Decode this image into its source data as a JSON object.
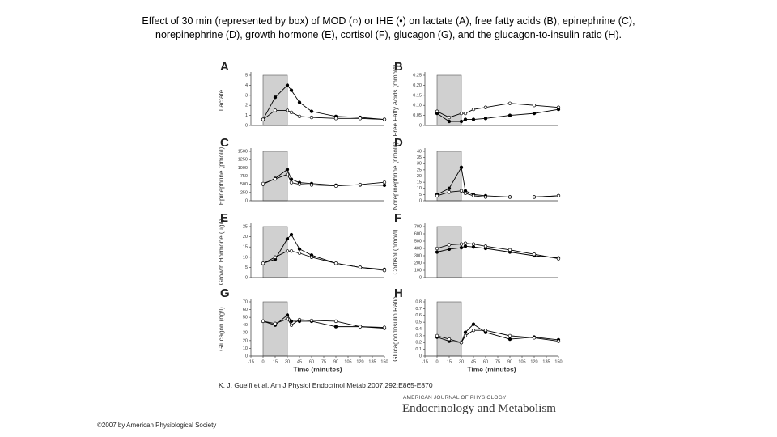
{
  "title": "Effect of 30 min (represented by box) of MOD (○) or IHE (•) on lactate (A), free fatty acids (B), epinephrine (C), norepinephrine (D), growth hormone (E), cortisol (F), glucagon (G), and the glucagon-to-insulin ratio (H).",
  "citation": "K. J. Guelfi et al. Am J Physiol Endocrinol Metab 2007;292:E865-E870",
  "copyright": "©2007 by American Physiological Society",
  "journal": {
    "name": "AMERICAN JOURNAL OF PHYSIOLOGY",
    "subtitle": "Endocrinology and Metabolism"
  },
  "chart_data": [
    {
      "type": "line",
      "panel": "A",
      "ylabel": "Lactate",
      "x": [
        0,
        15,
        30,
        35,
        45,
        60,
        90,
        120,
        150
      ],
      "xlim": [
        -15,
        150
      ],
      "ylim": [
        0,
        5
      ],
      "yticks": [
        0,
        1,
        2,
        3,
        4,
        5
      ],
      "shaded_range": [
        0,
        30
      ],
      "series": [
        {
          "marker": "filled",
          "color": "#000000",
          "values": [
            0.6,
            2.8,
            4.0,
            3.5,
            2.3,
            1.4,
            0.9,
            0.8,
            0.6
          ]
        },
        {
          "marker": "open",
          "color": "#000000",
          "values": [
            0.6,
            1.5,
            1.5,
            1.3,
            0.9,
            0.8,
            0.7,
            0.7,
            0.6
          ]
        }
      ]
    },
    {
      "type": "line",
      "panel": "B",
      "ylabel": "Free Fatty Acids (mmol/l)",
      "x": [
        0,
        15,
        30,
        35,
        45,
        60,
        90,
        120,
        150
      ],
      "xlim": [
        -15,
        150
      ],
      "ylim": [
        0,
        0.25
      ],
      "yticks": [
        0,
        0.05,
        {
          "value": 0.1,
          "label": "0.10"
        },
        0.15,
        {
          "value": 0.2,
          "label": "0.20"
        },
        0.25
      ],
      "shaded_range": [
        0,
        30
      ],
      "series": [
        {
          "marker": "filled",
          "color": "#000000",
          "values": [
            0.06,
            0.02,
            0.02,
            0.03,
            0.03,
            0.035,
            0.05,
            0.06,
            0.08
          ]
        },
        {
          "marker": "open",
          "color": "#000000",
          "values": [
            0.07,
            0.04,
            0.06,
            0.06,
            0.08,
            0.09,
            0.11,
            0.1,
            0.09
          ]
        }
      ]
    },
    {
      "type": "line",
      "panel": "C",
      "ylabel": "Epinephrine (pmol/l)",
      "x": [
        0,
        15,
        30,
        35,
        45,
        60,
        90,
        120,
        150
      ],
      "xlim": [
        -15,
        150
      ],
      "ylim": [
        0,
        1500
      ],
      "yticks": [
        0,
        250,
        500,
        750,
        1000,
        1250,
        1500
      ],
      "shaded_range": [
        0,
        30
      ],
      "series": [
        {
          "marker": "filled",
          "color": "#000000",
          "values": [
            500,
            680,
            950,
            650,
            550,
            520,
            470,
            480,
            470
          ]
        },
        {
          "marker": "open",
          "color": "#000000",
          "values": [
            520,
            660,
            800,
            550,
            500,
            480,
            450,
            490,
            560
          ]
        }
      ]
    },
    {
      "type": "line",
      "panel": "D",
      "ylabel": "Norepinephrine (nmol/l)",
      "x": [
        0,
        15,
        30,
        35,
        45,
        60,
        90,
        120,
        150
      ],
      "xlim": [
        -15,
        150
      ],
      "ylim": [
        0,
        40
      ],
      "yticks": [
        0,
        5,
        10,
        15,
        20,
        25,
        30,
        35,
        40
      ],
      "shaded_range": [
        0,
        30
      ],
      "series": [
        {
          "marker": "filled",
          "color": "#000000",
          "values": [
            5,
            10,
            27,
            8,
            5,
            4,
            3,
            3,
            4
          ]
        },
        {
          "marker": "open",
          "color": "#000000",
          "values": [
            4,
            7,
            8,
            6,
            4,
            3,
            3,
            3,
            4
          ]
        }
      ]
    },
    {
      "type": "line",
      "panel": "E",
      "ylabel": "Growth Hormone (µg/l)",
      "x": [
        0,
        15,
        30,
        35,
        45,
        60,
        90,
        120,
        150
      ],
      "xlim": [
        -15,
        150
      ],
      "ylim": [
        0,
        25
      ],
      "yticks": [
        0,
        5,
        10,
        15,
        20,
        25
      ],
      "shaded_range": [
        0,
        30
      ],
      "series": [
        {
          "marker": "filled",
          "color": "#000000",
          "values": [
            7,
            9,
            19,
            21,
            14,
            11,
            7,
            5,
            4
          ]
        },
        {
          "marker": "open",
          "color": "#000000",
          "values": [
            7,
            10,
            13,
            13,
            12,
            10,
            7,
            5,
            3.5
          ]
        }
      ]
    },
    {
      "type": "line",
      "panel": "F",
      "ylabel": "Cortisol (nmol/l)",
      "x": [
        0,
        15,
        30,
        35,
        45,
        60,
        90,
        120,
        150
      ],
      "xlim": [
        -15,
        150
      ],
      "ylim": [
        0,
        700
      ],
      "yticks": [
        0,
        100,
        200,
        300,
        400,
        500,
        600,
        700
      ],
      "shaded_range": [
        0,
        30
      ],
      "series": [
        {
          "marker": "filled",
          "color": "#000000",
          "values": [
            350,
            390,
            410,
            430,
            420,
            400,
            350,
            300,
            270
          ]
        },
        {
          "marker": "open",
          "color": "#000000",
          "values": [
            400,
            450,
            460,
            470,
            460,
            430,
            380,
            320,
            260
          ]
        }
      ]
    },
    {
      "type": "line",
      "panel": "G",
      "ylabel": "Glucagon (ng/l)",
      "xlabel": "Time (minutes)",
      "x": [
        0,
        15,
        30,
        35,
        45,
        60,
        90,
        120,
        150
      ],
      "xlim": [
        -15,
        150
      ],
      "xticks": [
        -15,
        0,
        15,
        30,
        45,
        60,
        75,
        90,
        105,
        120,
        135,
        150
      ],
      "ylim": [
        0,
        70
      ],
      "yticks": [
        0,
        10,
        20,
        30,
        40,
        50,
        60,
        70
      ],
      "shaded_range": [
        0,
        30
      ],
      "series": [
        {
          "marker": "filled",
          "color": "#000000",
          "values": [
            45,
            40,
            53,
            45,
            45,
            45,
            38,
            38,
            36
          ]
        },
        {
          "marker": "open",
          "color": "#000000",
          "values": [
            45,
            42,
            48,
            40,
            47,
            46,
            45,
            38,
            37
          ]
        }
      ]
    },
    {
      "type": "line",
      "panel": "H",
      "ylabel": "Glucagon/Insulin Ratio",
      "xlabel": "Time (minutes)",
      "x": [
        0,
        15,
        30,
        35,
        45,
        60,
        90,
        120,
        150
      ],
      "xlim": [
        -15,
        150
      ],
      "xticks": [
        -15,
        0,
        15,
        30,
        45,
        60,
        75,
        90,
        105,
        120,
        135,
        150
      ],
      "ylim": [
        0,
        0.8
      ],
      "yticks": [
        0,
        0.1,
        0.2,
        0.3,
        0.4,
        0.5,
        0.6,
        0.7,
        0.8
      ],
      "shaded_range": [
        0,
        30
      ],
      "series": [
        {
          "marker": "filled",
          "color": "#000000",
          "values": [
            0.28,
            0.22,
            0.2,
            0.35,
            0.47,
            0.35,
            0.25,
            0.28,
            0.24
          ]
        },
        {
          "marker": "open",
          "color": "#000000",
          "values": [
            0.3,
            0.25,
            0.2,
            0.3,
            0.38,
            0.38,
            0.3,
            0.27,
            0.22
          ]
        }
      ]
    }
  ]
}
